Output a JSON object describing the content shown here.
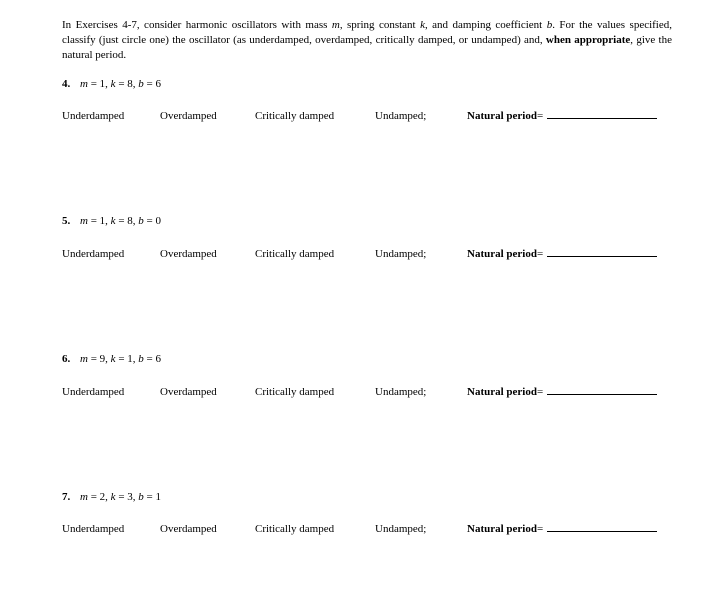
{
  "instructions": {
    "part1": "In Exercises 4-7, consider harmonic oscillators with mass ",
    "m": "m",
    "part2": ", spring constant ",
    "k": "k",
    "part3": ", and damping coefficient ",
    "b": "b",
    "part4": ". For the values specified, classify (just circle one) the oscillator (as underdamped, overdamped, critically damped, or undamped) and, ",
    "bold": "when appropriate",
    "part5": ", give the natural period."
  },
  "options": {
    "opt1": "Underdamped",
    "opt2": "Overdamped",
    "opt3": "Critically damped",
    "opt4": "Undamped;",
    "natural_period_label": "Natural period",
    "equals": " = "
  },
  "exercises": [
    {
      "num": "4.",
      "params_prefix": "m",
      "eq1": " = 1, ",
      "k": "k",
      "eq2": " = 8, ",
      "b": "b",
      "eq3": " = 6"
    },
    {
      "num": "5.",
      "params_prefix": "m",
      "eq1": " = 1, ",
      "k": "k",
      "eq2": " = 8, ",
      "b": "b",
      "eq3": " = 0"
    },
    {
      "num": "6.",
      "params_prefix": "m",
      "eq1": " = 9, ",
      "k": "k",
      "eq2": " = 1, ",
      "b": "b",
      "eq3": " = 6"
    },
    {
      "num": "7.",
      "params_prefix": "m",
      "eq1": " = 2, ",
      "k": "k",
      "eq2": " = 3, ",
      "b": "b",
      "eq3": " = 1"
    }
  ]
}
